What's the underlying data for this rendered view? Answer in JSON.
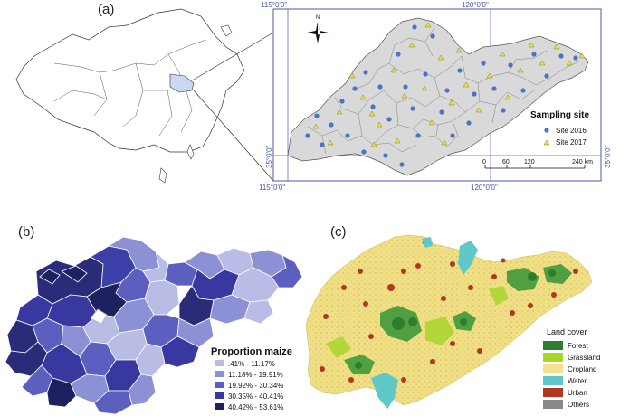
{
  "panels": {
    "a": {
      "label": "(a)"
    },
    "b": {
      "label": "(b)"
    },
    "c": {
      "label": "(c)"
    }
  },
  "panel_a": {
    "north_label": "N",
    "coords": {
      "top_left": "115°0'0\"",
      "top_right": "120°0'0\"",
      "bottom_left": "115°0'0\"",
      "bottom_right": "120°0'0\"",
      "left_side": "35°0'0\"",
      "right_side": "35°0'0\""
    },
    "legend": {
      "title": "Sampling site",
      "items": [
        {
          "label": "Site 2016",
          "color": "#4a74c4",
          "symbol": "circle"
        },
        {
          "label": "Site 2017",
          "color": "#e8e04a",
          "symbol": "triangle"
        }
      ]
    },
    "scale_bar": {
      "ticks": [
        "0",
        "60",
        "120",
        "240 km"
      ]
    }
  },
  "panel_b": {
    "legend": {
      "title": "Proportion maize",
      "items": [
        {
          "label": ".41% - 11.17%",
          "color": "#b9bde6"
        },
        {
          "label": "11.18% - 19.91%",
          "color": "#8c91d6"
        },
        {
          "label": "19.92% - 30.34%",
          "color": "#5c5fc0"
        },
        {
          "label": "30.35% - 40.41%",
          "color": "#3838a0"
        },
        {
          "label": "40.42% - 53.61%",
          "color": "#1e2160"
        }
      ]
    }
  },
  "panel_c": {
    "legend": {
      "title": "Land cover",
      "items": [
        {
          "label": "Forest",
          "color": "#2e7d2e"
        },
        {
          "label": "Grassland",
          "color": "#a8d62c"
        },
        {
          "label": "Cropland",
          "color": "#f3e38f"
        },
        {
          "label": "Water",
          "color": "#5fc9c9"
        },
        {
          "label": "Urban",
          "color": "#b3361f"
        },
        {
          "label": "Others",
          "color": "#888888"
        }
      ]
    }
  }
}
